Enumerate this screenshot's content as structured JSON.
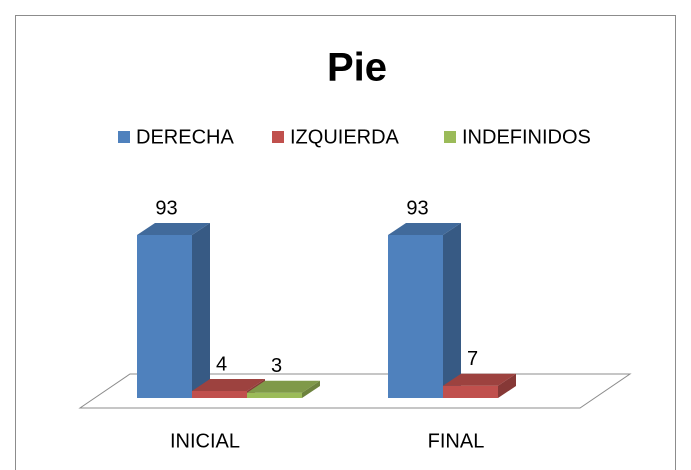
{
  "chart_data": {
    "type": "bar3d",
    "title": "Pie",
    "categories": [
      "INICIAL",
      "FINAL"
    ],
    "series": [
      {
        "name": "DERECHA",
        "color": "#4f81bd",
        "values": [
          93,
          93
        ]
      },
      {
        "name": "IZQUIERDA",
        "color": "#c0504d",
        "values": [
          4,
          7
        ]
      },
      {
        "name": "INDEFINIDOS",
        "color": "#9bbb59",
        "values": [
          3,
          null
        ]
      }
    ],
    "legend": "top"
  }
}
